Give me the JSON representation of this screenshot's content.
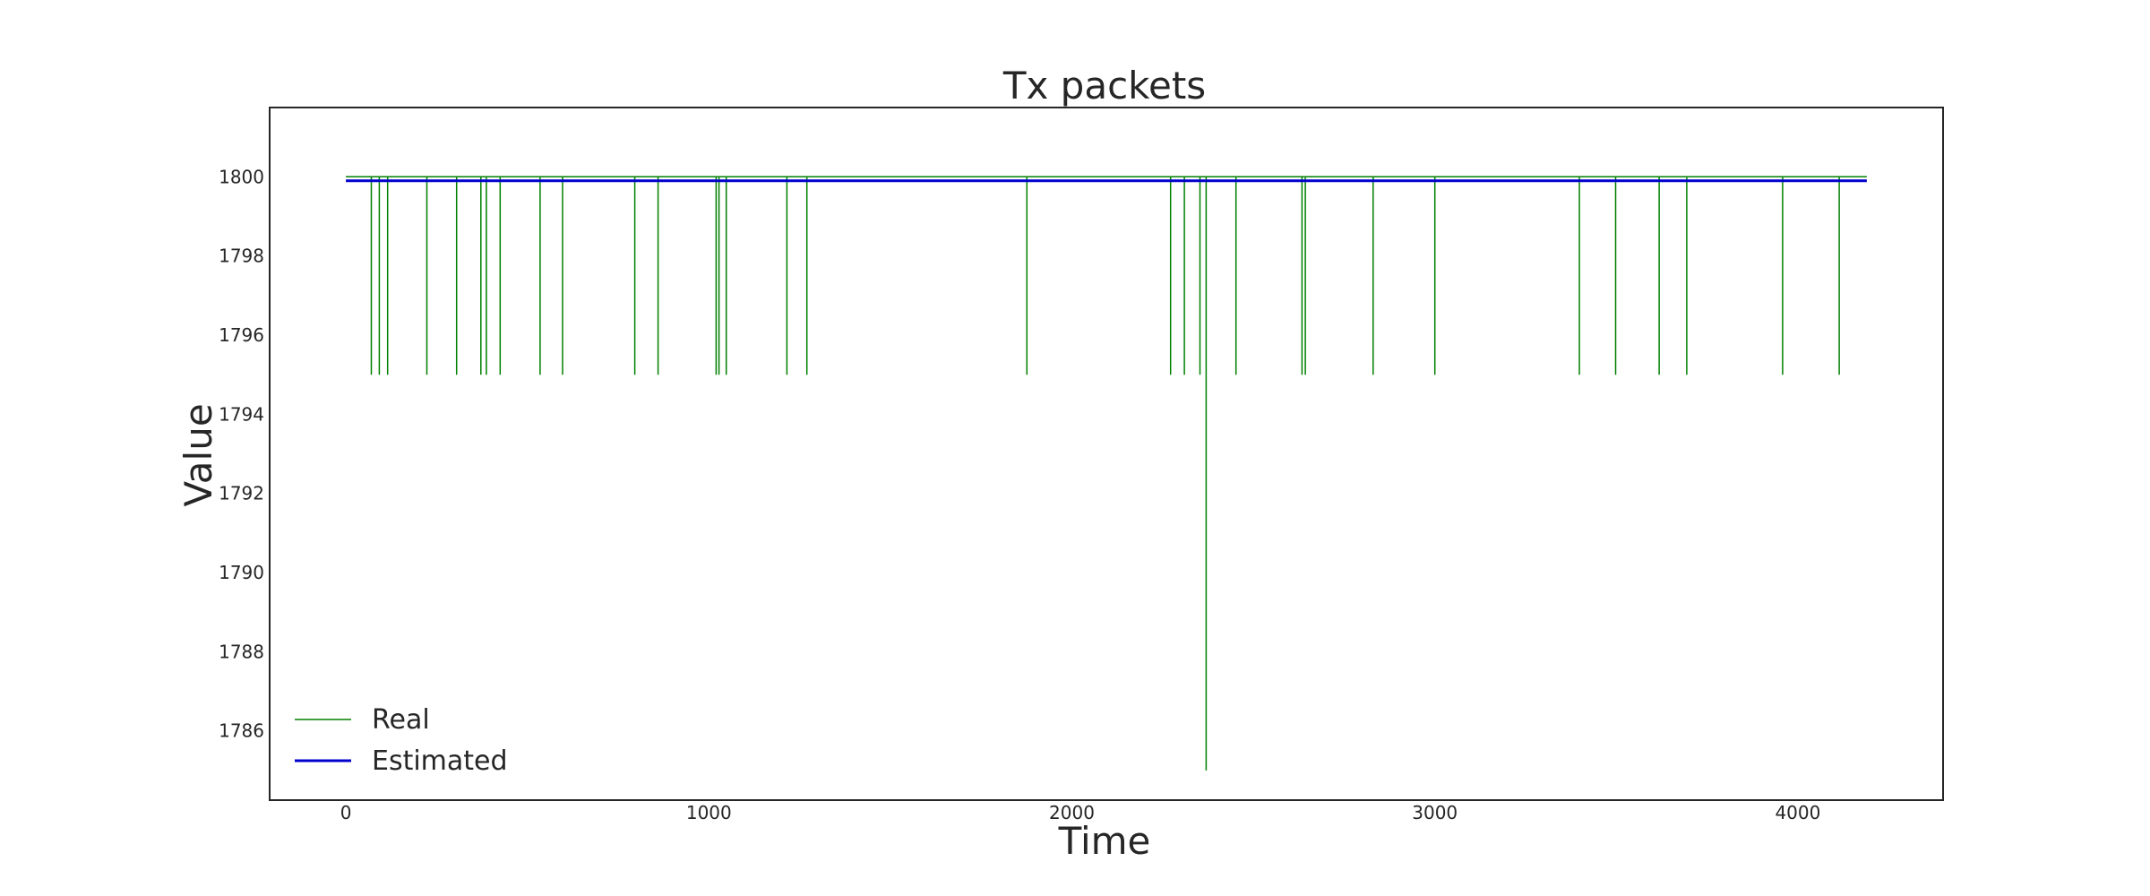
{
  "chart_data": {
    "type": "line",
    "title": "Tx packets",
    "xlabel": "Time",
    "ylabel": "Value",
    "xlim": [
      -210,
      4400
    ],
    "ylim": [
      1784.25,
      1801.75
    ],
    "xticks": [
      0,
      1000,
      2000,
      3000,
      4000
    ],
    "yticks": [
      1786,
      1788,
      1790,
      1792,
      1794,
      1796,
      1798,
      1800
    ],
    "xtick_labels": [
      "0",
      "1000",
      "2000",
      "3000",
      "4000"
    ],
    "ytick_labels": [
      "1786",
      "1788",
      "1790",
      "1792",
      "1794",
      "1796",
      "1798",
      "1800"
    ],
    "grid": false,
    "legend_position": "lower-left",
    "x_range": [
      0,
      4190
    ],
    "series": [
      {
        "name": "Real",
        "color": "#008000",
        "baseline": 1800,
        "dips": [
          {
            "x": 70,
            "y": 1795
          },
          {
            "x": 92,
            "y": 1795
          },
          {
            "x": 115,
            "y": 1795
          },
          {
            "x": 223,
            "y": 1795
          },
          {
            "x": 305,
            "y": 1795
          },
          {
            "x": 372,
            "y": 1795
          },
          {
            "x": 387,
            "y": 1795
          },
          {
            "x": 425,
            "y": 1795
          },
          {
            "x": 535,
            "y": 1795
          },
          {
            "x": 597,
            "y": 1795
          },
          {
            "x": 796,
            "y": 1795
          },
          {
            "x": 860,
            "y": 1795
          },
          {
            "x": 1020,
            "y": 1795
          },
          {
            "x": 1028,
            "y": 1795
          },
          {
            "x": 1048,
            "y": 1795
          },
          {
            "x": 1215,
            "y": 1795
          },
          {
            "x": 1270,
            "y": 1795
          },
          {
            "x": 1876,
            "y": 1795
          },
          {
            "x": 2272,
            "y": 1795
          },
          {
            "x": 2310,
            "y": 1795
          },
          {
            "x": 2353,
            "y": 1795
          },
          {
            "x": 2370,
            "y": 1785
          },
          {
            "x": 2452,
            "y": 1795
          },
          {
            "x": 2634,
            "y": 1795
          },
          {
            "x": 2643,
            "y": 1795
          },
          {
            "x": 2830,
            "y": 1795
          },
          {
            "x": 3000,
            "y": 1795
          },
          {
            "x": 3398,
            "y": 1795
          },
          {
            "x": 3498,
            "y": 1795
          },
          {
            "x": 3618,
            "y": 1795
          },
          {
            "x": 3694,
            "y": 1795
          },
          {
            "x": 3958,
            "y": 1795
          },
          {
            "x": 4114,
            "y": 1795
          }
        ]
      },
      {
        "name": "Estimated",
        "color": "#0000cc",
        "baseline": 1799.9,
        "dips": []
      }
    ]
  }
}
